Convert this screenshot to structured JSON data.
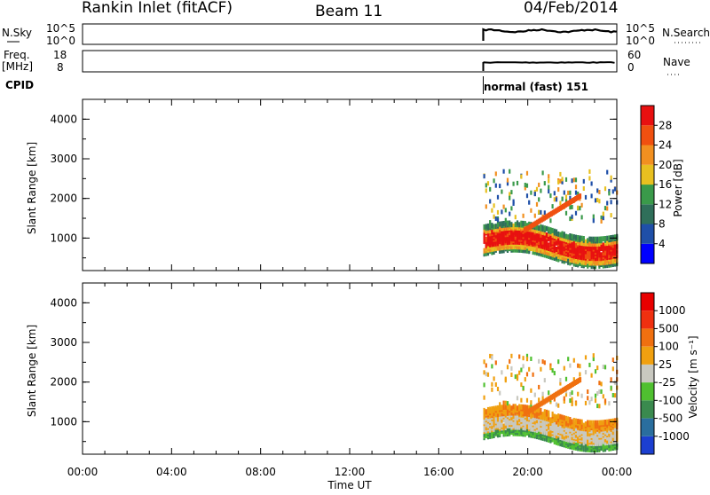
{
  "header": {
    "station": "Rankin Inlet (fitACF)",
    "beam": "Beam 11",
    "date": "04/Feb/2014"
  },
  "aux": {
    "nsky_label": "N.Sky",
    "nsky_ticks": [
      "10^5",
      "10^0"
    ],
    "nsearch_label": "N.Search",
    "nsearch_ticks": [
      "10^5",
      "10^0"
    ],
    "freq_label": "Freq.",
    "freq_unit": "[MHz]",
    "freq_ticks": [
      "18",
      "8"
    ],
    "nave_label": "Nave",
    "nave_ticks": [
      "60",
      "0"
    ],
    "cpid_label": "CPID",
    "cpid_text": "normal (fast) 151"
  },
  "chart_data": [
    {
      "type": "heatmap",
      "panel": "power",
      "ylabel": "Slant Range [km]",
      "yticks": [
        "4000",
        "3000",
        "2000",
        "1000"
      ],
      "ylim": [
        180,
        4500
      ],
      "xlim_hours": [
        0,
        24
      ],
      "data_start_hour": 18.0,
      "colorbar": {
        "label": "Power [dB]",
        "ticks": [
          "28",
          "24",
          "20",
          "16",
          "12",
          "8",
          "4"
        ],
        "colors": [
          "#0000ff",
          "#1f4fa8",
          "#2f6f5a",
          "#3a9a4a",
          "#e8c020",
          "#f29020",
          "#f05010",
          "#e81010"
        ]
      }
    },
    {
      "type": "heatmap",
      "panel": "velocity",
      "ylabel": "Slant Range [km]",
      "yticks": [
        "4000",
        "3000",
        "2000",
        "1000"
      ],
      "ylim": [
        180,
        4500
      ],
      "xlim_hours": [
        0,
        24
      ],
      "data_start_hour": 18.0,
      "colorbar": {
        "label": "Velocity [m s⁻¹]",
        "ticks": [
          "1000",
          "500",
          "100",
          "25",
          "-25",
          "-100",
          "-500",
          "-1000"
        ],
        "colors": [
          "#1c3fd0",
          "#2a6e9e",
          "#3a8a4e",
          "#4fc030",
          "#c8c8c0",
          "#f0a010",
          "#f07010",
          "#f03010",
          "#e80000"
        ]
      }
    }
  ],
  "xaxis": {
    "ticks": [
      "00:00",
      "04:00",
      "08:00",
      "12:00",
      "16:00",
      "20:00",
      "00:00"
    ],
    "label": "Time UT"
  }
}
